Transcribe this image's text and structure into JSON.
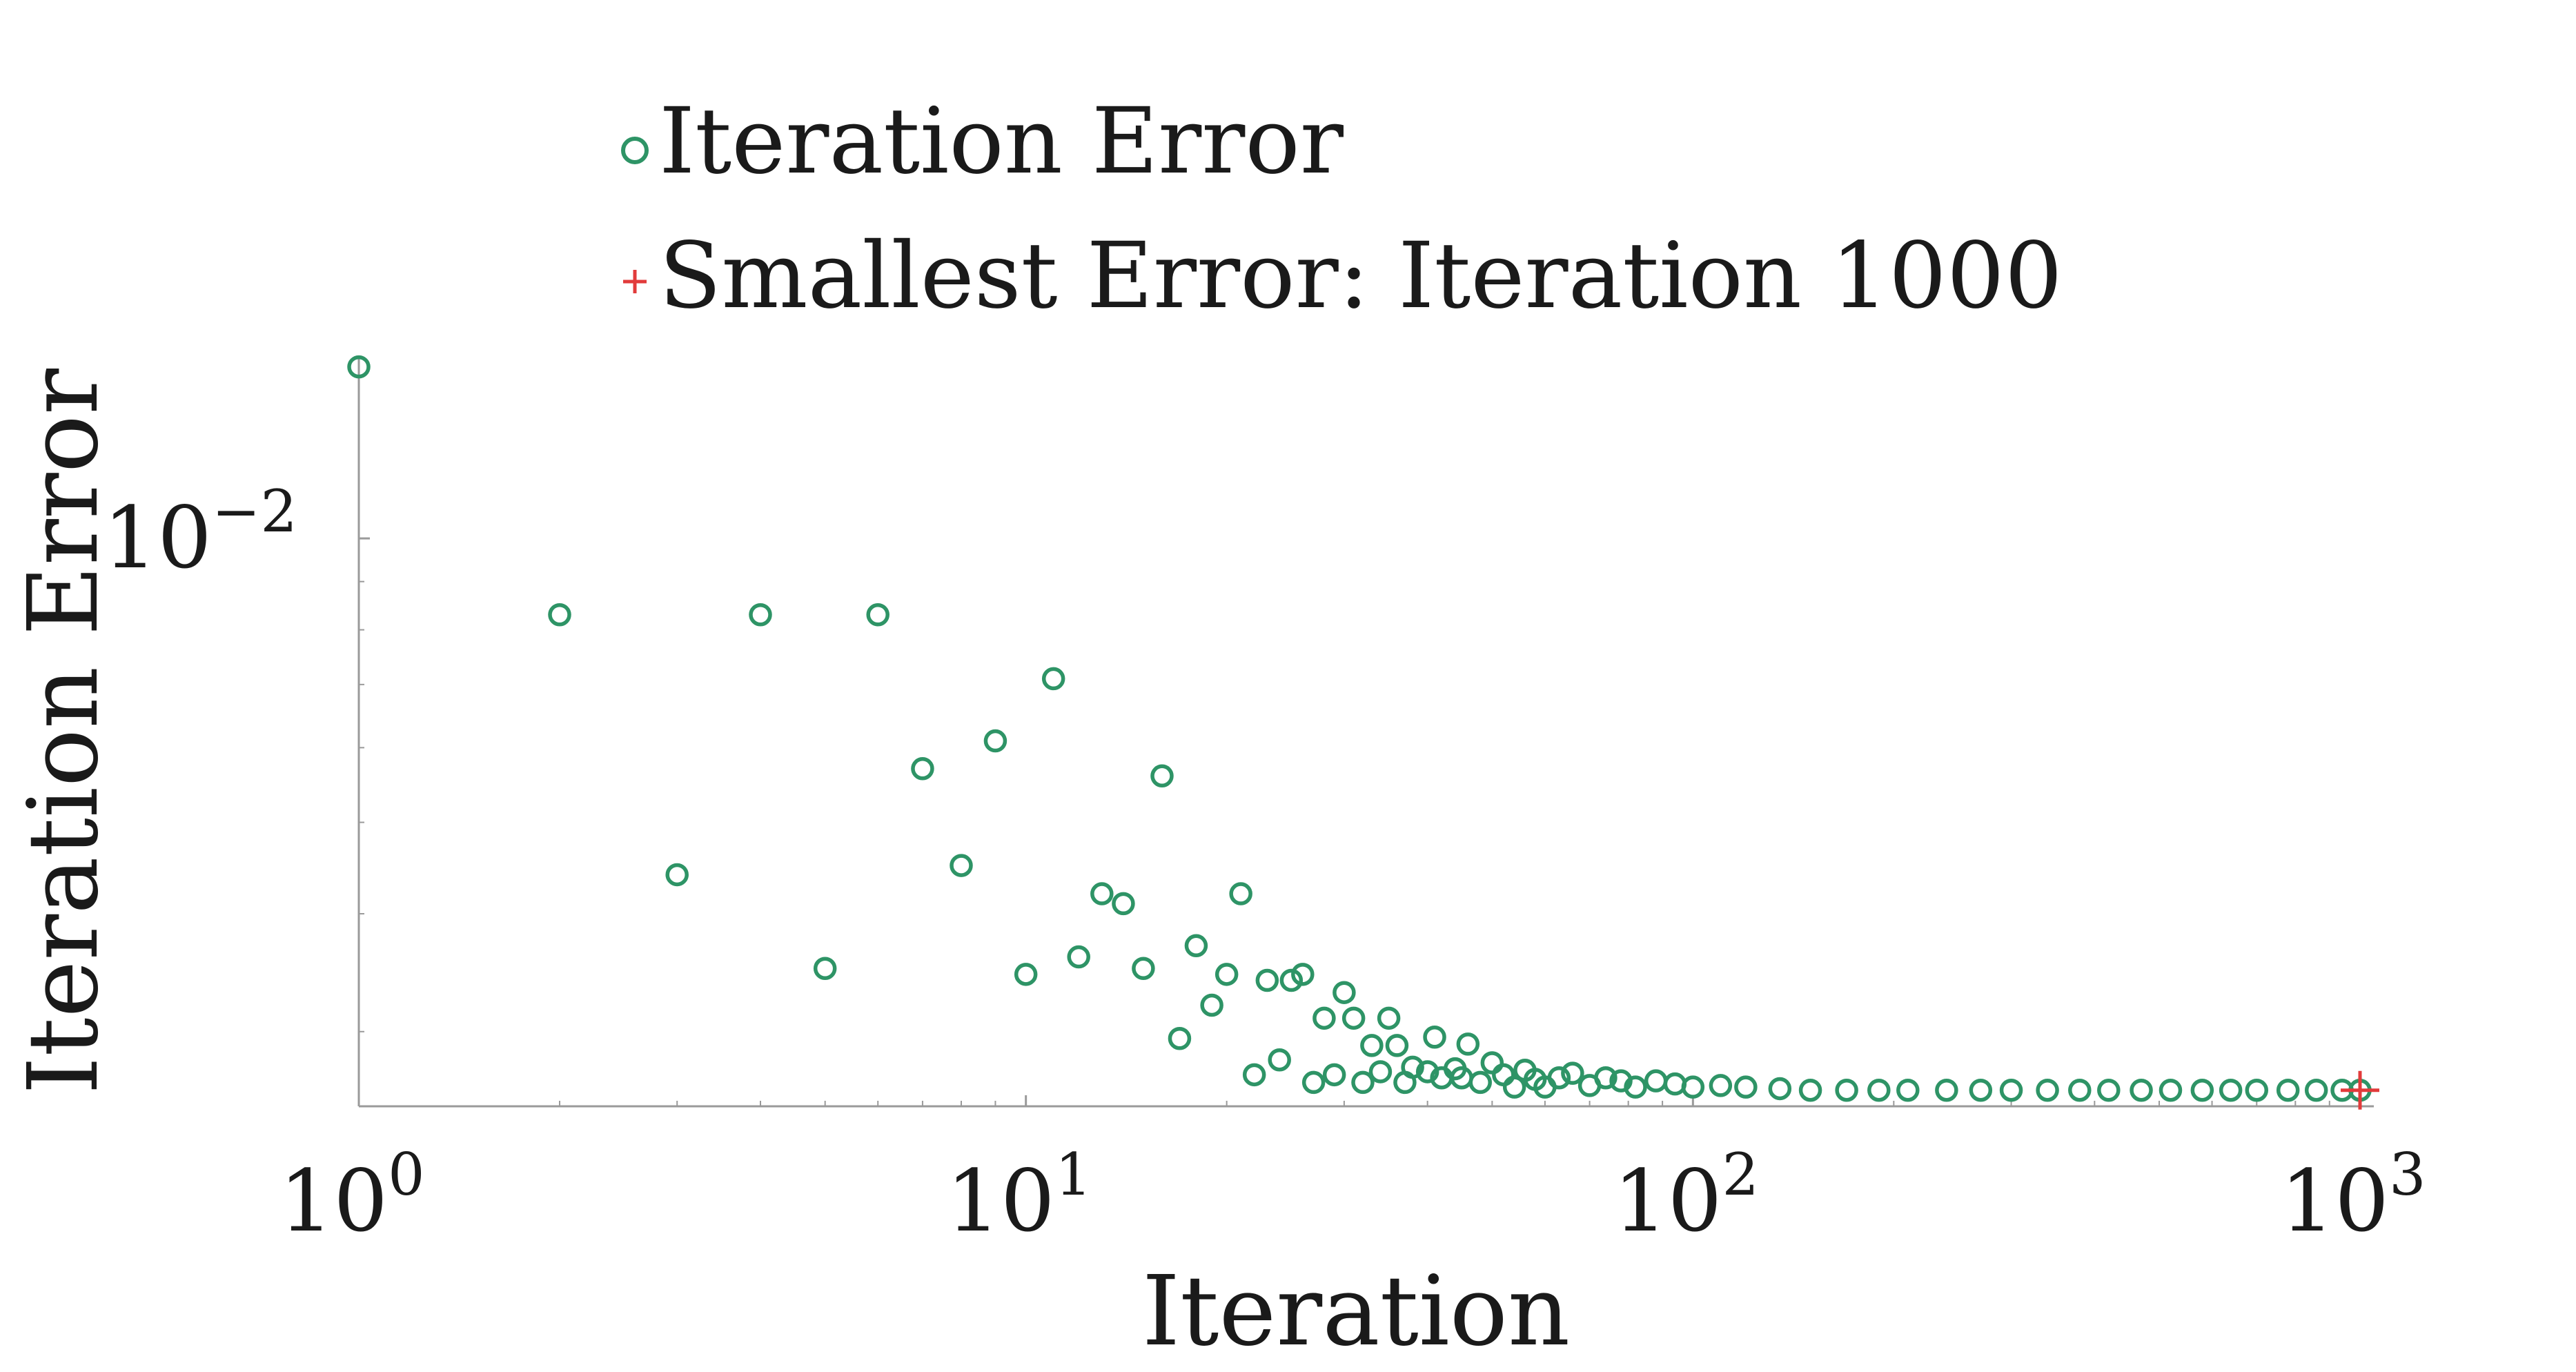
{
  "chart_data": {
    "type": "scatter",
    "xlabel": "Iteration",
    "ylabel": "Iteration Error",
    "x_scale": "log",
    "y_scale": "log",
    "xlim": [
      1,
      1000
    ],
    "ylim": [
      0.0025,
      0.0155
    ],
    "x_ticks": [
      {
        "value": 1,
        "base": "10",
        "exp": "0"
      },
      {
        "value": 10,
        "base": "10",
        "exp": "1"
      },
      {
        "value": 100,
        "base": "10",
        "exp": "2"
      },
      {
        "value": 1000,
        "base": "10",
        "exp": "3"
      }
    ],
    "y_ticks": [
      {
        "value": 0.01,
        "base": "10",
        "exp": "−2"
      }
    ],
    "grid": false,
    "legend_position": "top",
    "series": [
      {
        "name": "Iteration Error",
        "marker": "open-circle",
        "color": "#2e9466",
        "points": [
          [
            1,
            0.0152
          ],
          [
            2,
            0.0083
          ],
          [
            3,
            0.0044
          ],
          [
            4,
            0.0083
          ],
          [
            5,
            0.0035
          ],
          [
            6,
            0.0083
          ],
          [
            7,
            0.0057
          ],
          [
            8,
            0.0045
          ],
          [
            9,
            0.0061
          ],
          [
            10,
            0.00345
          ],
          [
            11,
            0.0071
          ],
          [
            12,
            0.0036
          ],
          [
            13,
            0.0042
          ],
          [
            14,
            0.0041
          ],
          [
            15,
            0.0035
          ],
          [
            16,
            0.0056
          ],
          [
            17,
            0.00295
          ],
          [
            18,
            0.0037
          ],
          [
            19,
            0.0032
          ],
          [
            20,
            0.00345
          ],
          [
            21,
            0.0042
          ],
          [
            22,
            0.0027
          ],
          [
            23,
            0.0034
          ],
          [
            24,
            0.0028
          ],
          [
            25,
            0.0034
          ],
          [
            26,
            0.00345
          ],
          [
            27,
            0.00265
          ],
          [
            28,
            0.0031
          ],
          [
            29,
            0.0027
          ],
          [
            30,
            0.0033
          ],
          [
            31,
            0.0031
          ],
          [
            32,
            0.00265
          ],
          [
            33,
            0.0029
          ],
          [
            34,
            0.00272
          ],
          [
            35,
            0.0031
          ],
          [
            36,
            0.0029
          ],
          [
            37,
            0.00265
          ],
          [
            38,
            0.00275
          ],
          [
            40,
            0.00272
          ],
          [
            41,
            0.00296
          ],
          [
            42,
            0.00268
          ],
          [
            44,
            0.00274
          ],
          [
            45,
            0.00268
          ],
          [
            46,
            0.00291
          ],
          [
            48,
            0.00265
          ],
          [
            50,
            0.00278
          ],
          [
            52,
            0.0027
          ],
          [
            54,
            0.00262
          ],
          [
            56,
            0.00273
          ],
          [
            58,
            0.00267
          ],
          [
            60,
            0.00262
          ],
          [
            63,
            0.00268
          ],
          [
            66,
            0.00271
          ],
          [
            70,
            0.00263
          ],
          [
            74,
            0.00268
          ],
          [
            78,
            0.00266
          ],
          [
            82,
            0.00262
          ],
          [
            88,
            0.00266
          ],
          [
            94,
            0.00264
          ],
          [
            100,
            0.00262
          ],
          [
            110,
            0.00263
          ],
          [
            120,
            0.00262
          ],
          [
            135,
            0.00261
          ],
          [
            150,
            0.0026
          ],
          [
            170,
            0.0026
          ],
          [
            190,
            0.0026
          ],
          [
            210,
            0.0026
          ],
          [
            240,
            0.0026
          ],
          [
            270,
            0.0026
          ],
          [
            300,
            0.0026
          ],
          [
            340,
            0.0026
          ],
          [
            380,
            0.0026
          ],
          [
            420,
            0.0026
          ],
          [
            470,
            0.0026
          ],
          [
            520,
            0.0026
          ],
          [
            580,
            0.0026
          ],
          [
            640,
            0.0026
          ],
          [
            700,
            0.0026
          ],
          [
            780,
            0.0026
          ],
          [
            860,
            0.0026
          ],
          [
            940,
            0.0026
          ],
          [
            1000,
            0.0026
          ]
        ]
      },
      {
        "name": "Smallest Error: Iteration 1000",
        "marker": "plus",
        "color": "#e23b3b",
        "points": [
          [
            1000,
            0.0026
          ]
        ]
      }
    ]
  }
}
